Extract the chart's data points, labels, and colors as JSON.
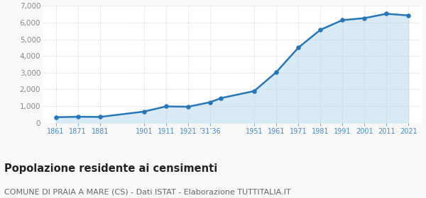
{
  "years": [
    1861,
    1871,
    1881,
    1901,
    1911,
    1921,
    1931,
    1936,
    1951,
    1961,
    1971,
    1981,
    1991,
    2001,
    2011,
    2021
  ],
  "population": [
    330,
    360,
    350,
    670,
    980,
    960,
    1230,
    1480,
    1900,
    3030,
    4500,
    5570,
    6150,
    6270,
    6530,
    6430
  ],
  "line_color": "#2676b8",
  "fill_color": "#d9eaf7",
  "marker_color": "#2676b8",
  "plot_bg_color": "#ffffff",
  "fig_bg_color": "#f9f9f9",
  "grid_color": "#cccccc",
  "title": "Popolazione residente ai censimenti",
  "subtitle": "COMUNE DI PRAIA A MARE (CS) - Dati ISTAT - Elaborazione TUTTITALIA.IT",
  "ylim": [
    0,
    7000
  ],
  "yticks": [
    0,
    1000,
    2000,
    3000,
    4000,
    5000,
    6000,
    7000
  ],
  "title_fontsize": 10.5,
  "subtitle_fontsize": 8.0,
  "tick_label_color": "#4488cc",
  "ytick_label_color": "#888888"
}
